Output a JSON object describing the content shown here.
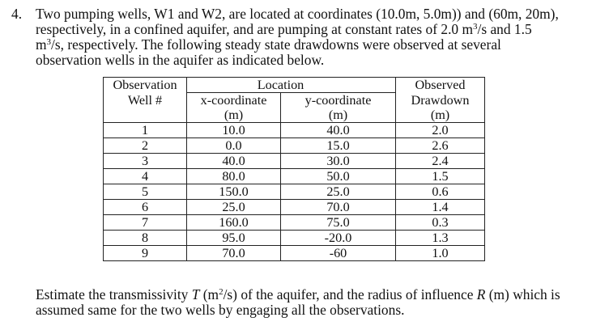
{
  "question_number": "4.",
  "intro_lines": {
    "l1_a": "Two pumping wells, W1 and W2, are located at coordinates (10.0m, 5.0m)) and (60m, 20m),",
    "l2_a": "respectively, in a confined aquifer, and are pumping at constant rates of 2.0 m",
    "l2_sup": "3",
    "l2_b": "/s and 1.5",
    "l3_a": "m",
    "l3_sup": "3",
    "l3_b": "/s, respectively. The following steady state drawdowns were observed at several",
    "l4": "observation wells in the aquifer as indicated below."
  },
  "table": {
    "headers": {
      "h_obs_1": "Observation",
      "h_obs_2": "Well #",
      "h_location": "Location",
      "h_x_1": "x-coordinate",
      "h_x_2": "(m)",
      "h_y_1": "y-coordinate",
      "h_y_2": "(m)",
      "h_dd_1": "Observed",
      "h_dd_2": "Drawdown",
      "h_dd_3": "(m)"
    },
    "rows": [
      {
        "well": "1",
        "x": "10.0",
        "y": "40.0",
        "drawdown": "2.0"
      },
      {
        "well": "2",
        "x": "0.0",
        "y": "15.0",
        "drawdown": "2.6"
      },
      {
        "well": "3",
        "x": "40.0",
        "y": "30.0",
        "drawdown": "2.4"
      },
      {
        "well": "4",
        "x": "80.0",
        "y": "50.0",
        "drawdown": "1.5"
      },
      {
        "well": "5",
        "x": "150.0",
        "y": "25.0",
        "drawdown": "0.6"
      },
      {
        "well": "6",
        "x": "25.0",
        "y": "70.0",
        "drawdown": "1.4"
      },
      {
        "well": "7",
        "x": "160.0",
        "y": "75.0",
        "drawdown": "0.3"
      },
      {
        "well": "8",
        "x": "95.0",
        "y": "-20.0",
        "drawdown": "1.3"
      },
      {
        "well": "9",
        "x": "70.0",
        "y": "-60",
        "drawdown": "1.0"
      }
    ]
  },
  "closing": {
    "c1_a": "Estimate the transmissivity ",
    "c1_T": "T",
    "c1_b": " (m",
    "c1_sup": "2",
    "c1_c": "/s) of the aquifer, and the radius of influence ",
    "c1_R": "R",
    "c1_d": " (m) which is",
    "c2": "assumed same for the two wells by engaging all the observations."
  }
}
